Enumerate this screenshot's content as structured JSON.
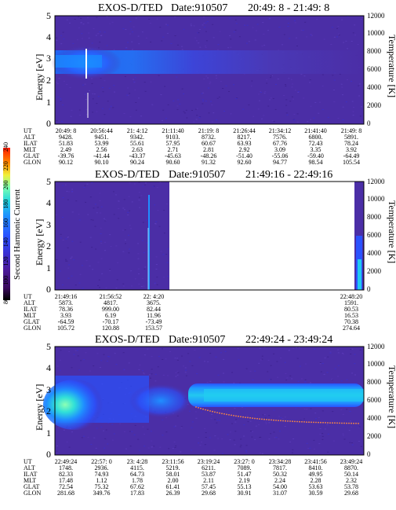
{
  "colorbar": {
    "label": "Second Harmonic Current",
    "ticks": [
      "80",
      "100",
      "120",
      "140",
      "160",
      "180",
      "200",
      "220",
      "240"
    ],
    "colors": [
      "#000000",
      "#3a0a5c",
      "#4b1a9a",
      "#3b2fd0",
      "#2a52ff",
      "#1f8fff",
      "#22d6e0",
      "#7dffb0",
      "#f0f03a",
      "#ff8a00",
      "#ff1a00"
    ]
  },
  "chart_data": [
    {
      "type": "heatmap",
      "title": "EXOS-D/TED",
      "date_label": "Date:910507",
      "time_range": "20:49: 8 - 21:49: 8",
      "ylabel": "Energy [eV]",
      "y2label": "Temperature [K]",
      "ylim": [
        0,
        5
      ],
      "yticks": [
        "0",
        "1",
        "2",
        "3",
        "4",
        "5"
      ],
      "y2ticks": [
        "0",
        "2000",
        "4000",
        "6000",
        "8000",
        "10000",
        "12000"
      ],
      "x": {
        "UT": [
          "20:49: 8",
          "20:56:44",
          "21: 4:12",
          "21:11:40",
          "21:19: 8",
          "21:26:44",
          "21:34:12",
          "21:41:40",
          "21:49: 8"
        ],
        "ALT": [
          "9428.",
          "9451.",
          "9342.",
          "9103.",
          "8732.",
          "8217.",
          "7576.",
          "6800.",
          "5891."
        ],
        "ILAT": [
          "51.83",
          "53.99",
          "55.61",
          "57.95",
          "60.67",
          "63.93",
          "67.76",
          "72.43",
          "78.24"
        ],
        "MLT": [
          "2.49",
          "2.56",
          "2.63",
          "2.71",
          "2.81",
          "2.92",
          "3.09",
          "3.35",
          "3.92"
        ],
        "GLAT": [
          "-39.76",
          "-41.44",
          "-43.37",
          "-45.63",
          "-48.26",
          "-51.40",
          "-55.06",
          "-59.40",
          "-64.49"
        ],
        "GLON": [
          "90.12",
          "90.10",
          "90.24",
          "90.60",
          "91.32",
          "92.60",
          "94.77",
          "98.54",
          "105.54"
        ]
      }
    },
    {
      "type": "heatmap",
      "title": "EXOS-D/TED",
      "date_label": "Date:910507",
      "time_range": "21:49:16 - 22:49:16",
      "ylabel": "Energy [eV]",
      "y2label": "Temperature [K]",
      "ylim": [
        0,
        5
      ],
      "yticks": [
        "0",
        "1",
        "2",
        "3",
        "4",
        "5"
      ],
      "y2ticks": [
        "0",
        "2000",
        "4000",
        "6000",
        "8000",
        "10000",
        "12000"
      ],
      "x": {
        "UT": [
          "21:49:16",
          "21:56:52",
          "22: 4:20",
          "22:48:20"
        ],
        "ALT": [
          "5873.",
          "4817.",
          "3675.",
          "1591."
        ],
        "ILAT": [
          "78.36",
          "999.00",
          "82.44",
          "80.53"
        ],
        "MLT": [
          "3.93",
          "6.19",
          "11.96",
          "16.53"
        ],
        "GLAT": [
          "-64.59",
          "-70.17",
          "-73.49",
          "70.38"
        ],
        "GLON": [
          "105.72",
          "120.88",
          "153.57",
          "274.64"
        ]
      }
    },
    {
      "type": "heatmap",
      "title": "EXOS-D/TED",
      "date_label": "Date:910507",
      "time_range": "22:49:24 - 23:49:24",
      "ylabel": "Energy [eV]",
      "y2label": "Temperature [K]",
      "ylim": [
        0,
        5
      ],
      "yticks": [
        "0",
        "1",
        "2",
        "3",
        "4",
        "5"
      ],
      "y2ticks": [
        "0",
        "2000",
        "4000",
        "6000",
        "8000",
        "10000",
        "12000"
      ],
      "x": {
        "UT": [
          "22:49:24",
          "22:57: 0",
          "23: 4:28",
          "23:11:56",
          "23:19:24",
          "23:27: 0",
          "23:34:28",
          "23:41:56",
          "23:49:24"
        ],
        "ALT": [
          "1748.",
          "2936.",
          "4115.",
          "5219.",
          "6211.",
          "7089.",
          "7817.",
          "8410.",
          "8870."
        ],
        "ILAT": [
          "82.33",
          "74.93",
          "64.73",
          "58.01",
          "53.87",
          "51.47",
          "50.32",
          "49.95",
          "50.14"
        ],
        "MLT": [
          "17.48",
          "1.12",
          "1.78",
          "2.00",
          "2.11",
          "2.19",
          "2.24",
          "2.28",
          "2.32"
        ],
        "GLAT": [
          "72.54",
          "75.32",
          "67.62",
          "61.41",
          "57.45",
          "55.13",
          "54.00",
          "53.63",
          "53.78"
        ],
        "GLON": [
          "281.68",
          "349.76",
          "17.83",
          "26.39",
          "29.68",
          "30.91",
          "31.07",
          "30.59",
          "29.68"
        ]
      }
    }
  ]
}
